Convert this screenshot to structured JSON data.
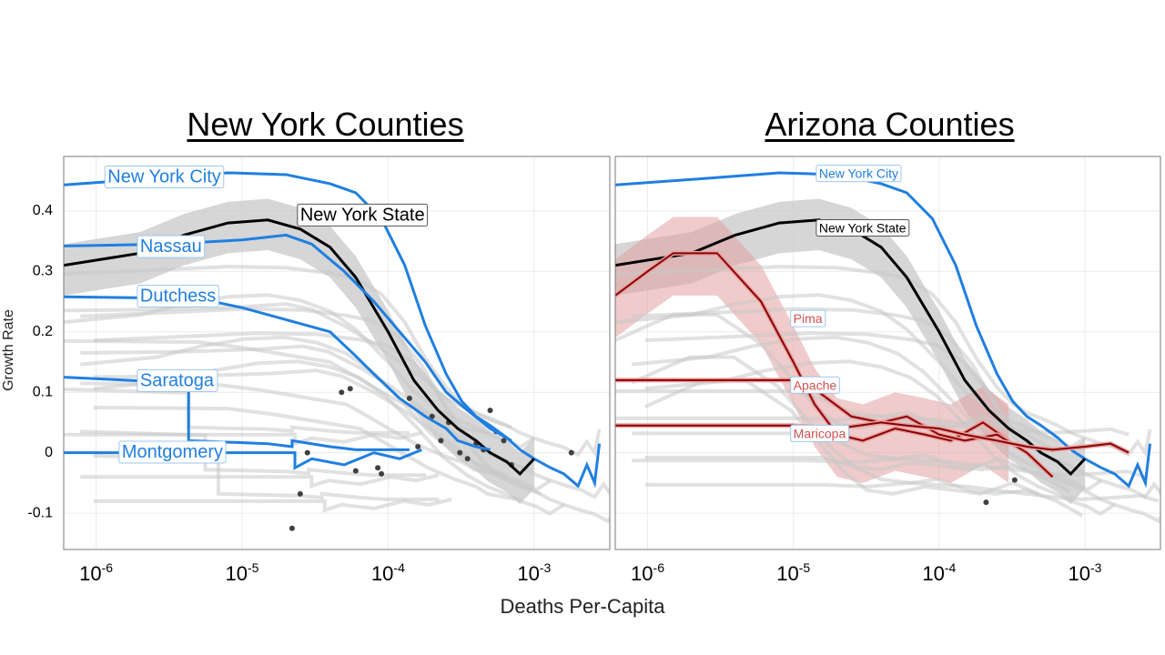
{
  "chart_data": [
    {
      "type": "line",
      "title": "New York Counties",
      "xlabel": "Deaths Per-Capita",
      "ylabel": "Growth Rate",
      "x_scale": "log10",
      "xlim": [
        6e-07,
        0.0033
      ],
      "ylim": [
        -0.16,
        0.49
      ],
      "x_ticks": [
        1e-06,
        1e-05,
        0.0001,
        0.001
      ],
      "y_ticks": [
        -0.1,
        0,
        0.1,
        0.2,
        0.3,
        0.4
      ],
      "y_tick_labels": [
        "-0.1",
        "0",
        "0.1",
        "0.2",
        "0.3",
        "0.4"
      ],
      "grid": true,
      "series": [
        {
          "name": "New York City",
          "color": "#1f7fe0",
          "label_at": [
            1.2e-06,
            0.455
          ],
          "x": [
            6e-07,
            2e-06,
            8e-06,
            2e-05,
            4e-05,
            6e-05,
            9e-05,
            0.00013,
            0.00018,
            0.00025,
            0.00032,
            0.0004,
            0.0005,
            0.00065,
            0.0008,
            0.001,
            0.0013,
            0.0016,
            0.002,
            0.0023,
            0.0026,
            0.0028
          ],
          "y": [
            0.443,
            0.452,
            0.463,
            0.46,
            0.445,
            0.43,
            0.387,
            0.31,
            0.21,
            0.13,
            0.085,
            0.06,
            0.045,
            0.025,
            0.005,
            -0.01,
            -0.025,
            -0.035,
            -0.055,
            -0.02,
            -0.05,
            0.015
          ]
        },
        {
          "name": "New York State",
          "color": "#000000",
          "label_at": [
            2.5e-05,
            0.392
          ],
          "x": [
            6e-07,
            2e-06,
            4e-06,
            8e-06,
            1.5e-05,
            2.5e-05,
            4e-05,
            6e-05,
            0.0001,
            0.00015,
            0.00022,
            0.0003,
            0.0004,
            0.0005,
            0.00065,
            0.0008,
            0.001
          ],
          "y": [
            0.31,
            0.33,
            0.36,
            0.38,
            0.385,
            0.37,
            0.34,
            0.29,
            0.2,
            0.12,
            0.07,
            0.04,
            0.02,
            0.0,
            -0.015,
            -0.035,
            -0.01
          ]
        },
        {
          "name": "Nassau",
          "color": "#1f7fe0",
          "label_at": [
            2e-06,
            0.34
          ],
          "x": [
            6e-07,
            3e-06,
            1e-05,
            2e-05,
            3e-05,
            5e-05,
            8e-05,
            0.00012,
            0.00018,
            0.00025,
            0.00035,
            0.0005,
            0.0007
          ],
          "y": [
            0.342,
            0.345,
            0.352,
            0.36,
            0.345,
            0.3,
            0.25,
            0.2,
            0.15,
            0.1,
            0.07,
            0.04,
            0.02
          ]
        },
        {
          "name": "Dutchess",
          "color": "#1f7fe0",
          "label_at": [
            2e-06,
            0.258
          ],
          "x": [
            6e-07,
            5e-06,
            1e-05,
            2e-05,
            4e-05,
            6e-05,
            8e-05,
            0.00012,
            0.00018,
            0.00025,
            0.0003,
            0.0004,
            0.0005
          ],
          "y": [
            0.258,
            0.255,
            0.24,
            0.22,
            0.2,
            0.16,
            0.13,
            0.09,
            0.06,
            0.04,
            0.02,
            0.01,
            0.005
          ]
        },
        {
          "name": "Saratoga",
          "color": "#1f7fe0",
          "label_at": [
            2e-06,
            0.118
          ],
          "x": [
            6e-07,
            4.3e-06,
            4.3e-06,
            4.3e-06,
            1.5e-05,
            2.2e-05,
            2.2e-05,
            4e-05,
            6e-05,
            0.0001,
            0.00014
          ],
          "y": [
            0.125,
            0.115,
            0.085,
            0.02,
            0.015,
            0.01,
            0.02,
            0.01,
            0.005,
            0.005,
            0.005
          ]
        },
        {
          "name": "Montgomery",
          "color": "#1f7fe0",
          "label_at": [
            1.5e-06,
            0.0
          ],
          "x": [
            6e-07,
            1e-05,
            2e-05,
            2.3e-05,
            2.3e-05,
            3e-05,
            5e-05,
            8e-05,
            0.00012,
            0.00017
          ],
          "y": [
            0.0,
            0.0,
            0.0,
            0.0,
            -0.025,
            -0.01,
            -0.02,
            0.0,
            -0.01,
            0.005
          ]
        }
      ],
      "points": [
        {
          "x": 2.2e-05,
          "y": -0.125
        },
        {
          "x": 2.5e-05,
          "y": -0.068
        },
        {
          "x": 2.8e-05,
          "y": 0.0
        },
        {
          "x": 4.8e-05,
          "y": 0.1
        },
        {
          "x": 5.5e-05,
          "y": 0.106
        },
        {
          "x": 6e-05,
          "y": -0.03
        },
        {
          "x": 8.5e-05,
          "y": -0.025
        },
        {
          "x": 9e-05,
          "y": -0.035
        },
        {
          "x": 0.00014,
          "y": 0.09
        },
        {
          "x": 0.00016,
          "y": 0.01
        },
        {
          "x": 0.0002,
          "y": 0.06
        },
        {
          "x": 0.00023,
          "y": 0.02
        },
        {
          "x": 0.00026,
          "y": 0.05
        },
        {
          "x": 0.00031,
          "y": 0.0
        },
        {
          "x": 0.00035,
          "y": -0.01
        },
        {
          "x": 0.0004,
          "y": 0.015
        },
        {
          "x": 0.00045,
          "y": 0.005
        },
        {
          "x": 0.0005,
          "y": 0.07
        },
        {
          "x": 0.00055,
          "y": 0.035
        },
        {
          "x": 0.00062,
          "y": 0.02
        },
        {
          "x": 0.0007,
          "y": -0.02
        },
        {
          "x": 0.0018,
          "y": 0.0
        }
      ]
    },
    {
      "type": "line",
      "title": "Arizona Counties",
      "xlabel": "Deaths Per-Capita",
      "ylabel": "Growth Rate",
      "x_scale": "log10",
      "xlim": [
        6e-07,
        0.0033
      ],
      "ylim": [
        -0.16,
        0.49
      ],
      "x_ticks": [
        1e-06,
        1e-05,
        0.0001,
        0.001
      ],
      "grid": true,
      "series": [
        {
          "name": "New York City",
          "color": "#1f7fe0",
          "label_at": [
            1.5e-05,
            0.46
          ],
          "x": [
            6e-07,
            2e-06,
            8e-06,
            2e-05,
            4e-05,
            6e-05,
            9e-05,
            0.00013,
            0.00018,
            0.00025,
            0.00032,
            0.0004,
            0.0005,
            0.00065,
            0.0008,
            0.001,
            0.0013,
            0.0016,
            0.002,
            0.0023,
            0.0026,
            0.0028
          ],
          "y": [
            0.443,
            0.452,
            0.463,
            0.46,
            0.445,
            0.43,
            0.387,
            0.31,
            0.21,
            0.13,
            0.085,
            0.06,
            0.045,
            0.025,
            0.005,
            -0.01,
            -0.025,
            -0.035,
            -0.055,
            -0.02,
            -0.05,
            0.015
          ]
        },
        {
          "name": "New York State",
          "color": "#000000",
          "label_at": [
            1.5e-05,
            0.37
          ],
          "x": [
            6e-07,
            2e-06,
            4e-06,
            8e-06,
            1.5e-05,
            2.5e-05,
            4e-05,
            6e-05,
            0.0001,
            0.00015,
            0.00022,
            0.0003,
            0.0004,
            0.0005,
            0.00065,
            0.0008,
            0.001
          ],
          "y": [
            0.31,
            0.33,
            0.36,
            0.38,
            0.385,
            0.37,
            0.34,
            0.29,
            0.2,
            0.12,
            0.07,
            0.04,
            0.02,
            0.0,
            -0.015,
            -0.035,
            -0.01
          ]
        },
        {
          "name": "Pima",
          "color": "#b03030",
          "label_at": [
            1e-05,
            0.22
          ],
          "x": [
            6e-07,
            1e-06,
            1.5e-06,
            3e-06,
            6e-06,
            1e-05,
            1.4e-05,
            2e-05,
            3e-05,
            5e-05,
            8e-05,
            0.00012,
            0.0002,
            0.0003
          ],
          "y": [
            0.26,
            0.3,
            0.33,
            0.33,
            0.25,
            0.15,
            0.08,
            0.03,
            0.02,
            0.04,
            0.03,
            0.02,
            0.05,
            0.02
          ]
        },
        {
          "name": "Apache",
          "color": "#b03030",
          "label_at": [
            1e-05,
            0.11
          ],
          "x": [
            6e-07,
            1e-05,
            1.5e-05,
            2.5e-05,
            4e-05,
            6e-05,
            0.0001,
            0.00015,
            0.00025,
            0.0004,
            0.0006
          ],
          "y": [
            0.12,
            0.12,
            0.1,
            0.06,
            0.05,
            0.06,
            0.03,
            0.02,
            0.03,
            0.0,
            -0.04
          ]
        },
        {
          "name": "Maricopa",
          "color": "#b03030",
          "label_at": [
            1e-05,
            0.03
          ],
          "x": [
            6e-07,
            1e-05,
            2e-05,
            4e-05,
            6e-05,
            0.0001,
            0.00015,
            0.00025,
            0.0004,
            0.0006,
            0.001,
            0.0015,
            0.002
          ],
          "y": [
            0.045,
            0.045,
            0.04,
            0.05,
            0.045,
            0.04,
            0.03,
            0.02,
            0.01,
            0.005,
            0.01,
            0.015,
            0.0
          ]
        }
      ],
      "points": [
        {
          "x": 0.00021,
          "y": -0.082
        },
        {
          "x": 0.00033,
          "y": -0.045
        }
      ]
    }
  ]
}
